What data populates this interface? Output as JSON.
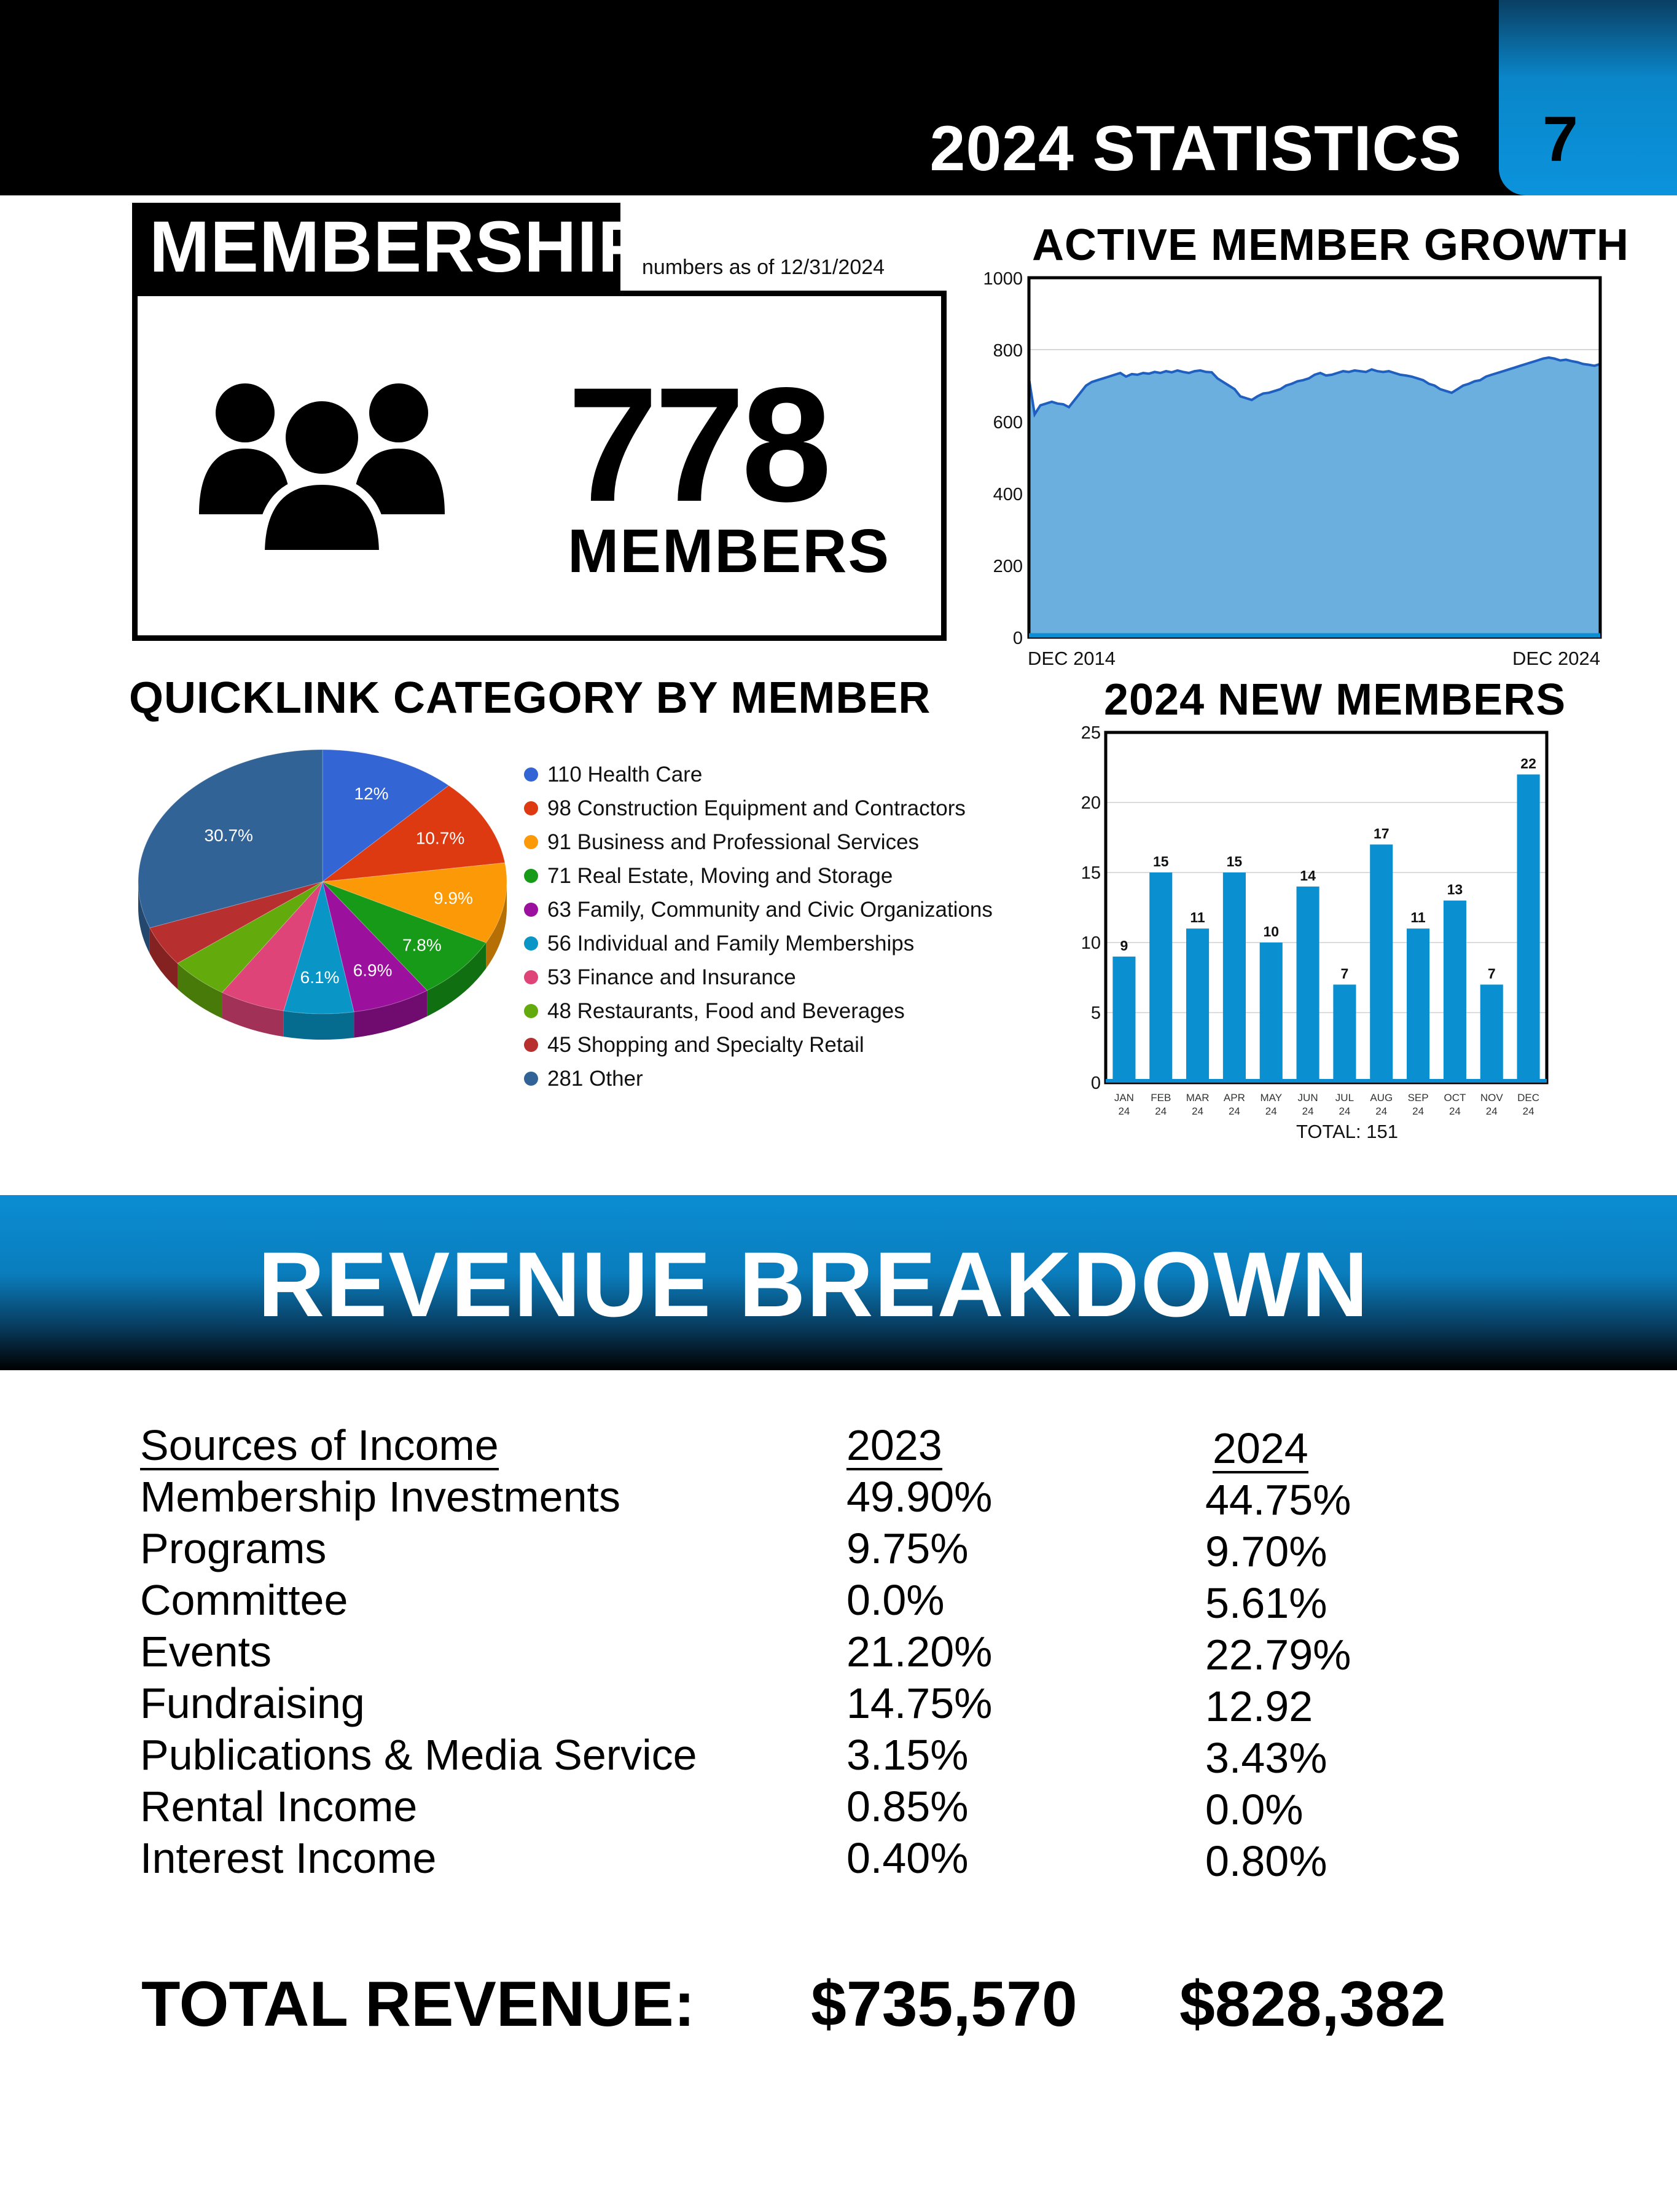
{
  "header": {
    "title": "2024 STATISTICS",
    "page_number": "7"
  },
  "membership": {
    "tag": "MEMBERSHIP",
    "note": "numbers as of 12/31/2024",
    "count": "778",
    "count_label": "MEMBERS",
    "icon": "people-group-icon"
  },
  "sections": {
    "growth_title": "ACTIVE MEMBER GROWTH",
    "quicklink_title": "QUICKLINK CATEGORY BY MEMBER",
    "new_members_title": "2024 NEW MEMBERS",
    "new_members_total": "TOTAL: 151"
  },
  "revenue": {
    "banner_title": "REVENUE BREAKDOWN",
    "header_sources": "Sources of Income",
    "header_2023": "2023",
    "header_2024": "2024",
    "rows": [
      {
        "label": "Membership Investments",
        "y2023": "49.90%",
        "y2024": "44.75%"
      },
      {
        "label": "Programs",
        "y2023": "9.75%",
        "y2024": "9.70%"
      },
      {
        "label": "Committee",
        "y2023": "0.0%",
        "y2024": "5.61%"
      },
      {
        "label": "Events",
        "y2023": "21.20%",
        "y2024": "22.79%"
      },
      {
        "label": "Fundraising",
        "y2023": "14.75%",
        "y2024": "12.92"
      },
      {
        "label": "Publications & Media Service",
        "y2023": "3.15%",
        "y2024": "3.43%"
      },
      {
        "label": "Rental Income",
        "y2023": "0.85%",
        "y2024": "0.0%"
      },
      {
        "label": "Interest Income",
        "y2023": "0.40%",
        "y2024": "0.80%"
      }
    ],
    "total_label": "TOTAL REVENUE:",
    "total_2023": "$735,570",
    "total_2024": "$828,382"
  },
  "colors": {
    "accent_blue": "#0b8dd3",
    "bar_blue": "#0a8fd0",
    "area_fill": "#6aafde",
    "area_line": "#1f5fbf"
  },
  "chart_data": [
    {
      "type": "area",
      "title": "ACTIVE MEMBER GROWTH",
      "x_labels": [
        "DEC 2014",
        "DEC 2024"
      ],
      "yticks": [
        0,
        200,
        400,
        600,
        800,
        1000
      ],
      "ylim": [
        0,
        1000
      ],
      "grid": true,
      "series": [
        {
          "x": [
            0,
            0.1,
            0.2,
            0.3,
            0.4,
            0.5,
            0.6,
            0.7,
            0.8,
            0.9,
            1.0,
            1.1,
            1.2,
            1.3,
            1.4,
            1.5,
            1.6,
            1.7,
            1.8,
            1.9,
            2.0,
            2.1,
            2.2,
            2.3,
            2.4,
            2.5,
            2.6,
            2.7,
            2.8,
            2.9,
            3.0,
            3.1,
            3.2,
            3.3,
            3.4,
            3.5,
            3.6,
            3.7,
            3.8,
            3.9,
            4.0,
            4.1,
            4.2,
            4.3,
            4.4,
            4.5,
            4.6,
            4.7,
            4.8,
            4.9,
            5.0,
            5.1,
            5.2,
            5.3,
            5.4,
            5.5,
            5.6,
            5.7,
            5.8,
            5.9,
            6.0,
            6.1,
            6.2,
            6.3,
            6.4,
            6.5,
            6.6,
            6.7,
            6.8,
            6.9,
            7.0,
            7.1,
            7.2,
            7.3,
            7.4,
            7.5,
            7.6,
            7.7,
            7.8,
            7.9,
            8.0,
            8.1,
            8.2,
            8.3,
            8.4,
            8.5,
            8.6,
            8.7,
            8.8,
            8.9,
            9.0,
            9.1,
            9.2,
            9.3,
            9.4,
            9.5,
            9.6,
            9.7,
            9.8,
            9.9,
            10.0
          ],
          "y": [
            720,
            620,
            645,
            650,
            655,
            650,
            648,
            640,
            660,
            680,
            700,
            710,
            715,
            720,
            725,
            730,
            735,
            725,
            732,
            730,
            735,
            733,
            738,
            735,
            740,
            737,
            742,
            738,
            735,
            740,
            742,
            738,
            737,
            720,
            710,
            700,
            690,
            670,
            665,
            660,
            670,
            678,
            680,
            685,
            690,
            700,
            705,
            712,
            715,
            720,
            730,
            735,
            728,
            730,
            735,
            740,
            738,
            742,
            740,
            738,
            745,
            740,
            738,
            740,
            735,
            730,
            728,
            725,
            720,
            715,
            705,
            700,
            690,
            685,
            680,
            690,
            700,
            705,
            712,
            715,
            725,
            730,
            735,
            740,
            745,
            750,
            755,
            760,
            765,
            770,
            775,
            778,
            775,
            770,
            772,
            768,
            765,
            760,
            758,
            755,
            760
          ]
        }
      ]
    },
    {
      "type": "pie",
      "title": "QUICKLINK CATEGORY BY MEMBER",
      "slices": [
        {
          "label": "110 Health Care",
          "value": 110,
          "pct_label": "12%",
          "color": "#3465d4"
        },
        {
          "label": "98 Construction Equipment and Contractors",
          "value": 98,
          "pct_label": "10.7%",
          "color": "#dd3a12"
        },
        {
          "label": "91 Business and Professional Services",
          "value": 91,
          "pct_label": "9.9%",
          "color": "#fb9a06"
        },
        {
          "label": "71 Real Estate, Moving and Storage",
          "value": 71,
          "pct_label": "7.8%",
          "color": "#169a18"
        },
        {
          "label": "63 Family, Community and Civic Organizations",
          "value": 63,
          "pct_label": "6.9%",
          "color": "#9b109c"
        },
        {
          "label": "56 Individual and Family Memberships",
          "value": 56,
          "pct_label": "6.1%",
          "color": "#0996c7"
        },
        {
          "label": "53 Finance and Insurance",
          "value": 53,
          "pct_label": "",
          "color": "#df4479"
        },
        {
          "label": "48 Restaurants, Food and Beverages",
          "value": 48,
          "pct_label": "",
          "color": "#63aa0c"
        },
        {
          "label": "45 Shopping and Specialty Retail",
          "value": 45,
          "pct_label": "",
          "color": "#b72f2f"
        },
        {
          "label": "281 Other",
          "value": 281,
          "pct_label": "30.7%",
          "color": "#326397"
        }
      ]
    },
    {
      "type": "bar",
      "title": "2024 NEW MEMBERS",
      "categories": [
        "JAN 24",
        "FEB 24",
        "MAR 24",
        "APR 24",
        "MAY 24",
        "JUN 24",
        "JUL 24",
        "AUG 24",
        "SEP 24",
        "OCT 24",
        "NOV 24",
        "DEC 24"
      ],
      "values": [
        9,
        15,
        11,
        15,
        10,
        14,
        7,
        17,
        11,
        13,
        7,
        22
      ],
      "ylim": [
        0,
        25
      ],
      "yticks": [
        0,
        5,
        10,
        15,
        20,
        25
      ],
      "grid": true,
      "total_text": "TOTAL: 151"
    }
  ]
}
